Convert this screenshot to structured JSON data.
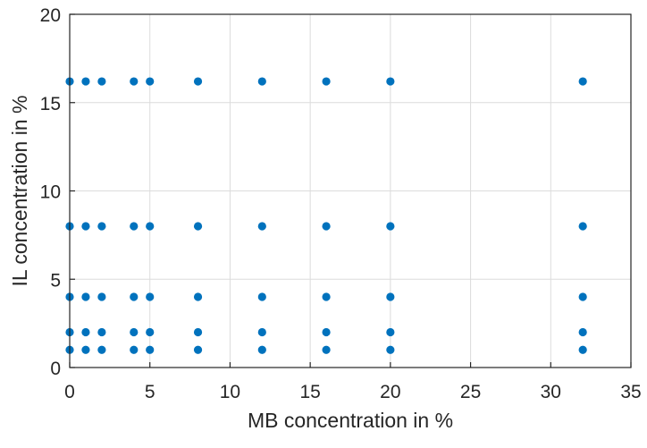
{
  "chart_data": {
    "type": "scatter",
    "title": "",
    "xlabel": "MB concentration in %",
    "ylabel": "IL concentration in %",
    "xlim": [
      0,
      35
    ],
    "ylim": [
      0,
      20
    ],
    "x_ticks": [
      "0",
      "5",
      "10",
      "15",
      "20",
      "25",
      "30",
      "35"
    ],
    "y_ticks": [
      "0",
      "5",
      "10",
      "15",
      "20"
    ],
    "grid": true,
    "legend": "none",
    "marker_color": "#0072BD",
    "series": [
      {
        "x": [
          0,
          1,
          2,
          4,
          5,
          8,
          12,
          16,
          20,
          32,
          0,
          1,
          2,
          4,
          5,
          8,
          12,
          16,
          20,
          32,
          0,
          1,
          2,
          4,
          5,
          8,
          12,
          16,
          20,
          32,
          0,
          1,
          2,
          4,
          5,
          8,
          12,
          16,
          20,
          32,
          0,
          1,
          2,
          4,
          5,
          8,
          12,
          16,
          20,
          32
        ],
        "y": [
          1,
          1,
          1,
          1,
          1,
          1,
          1,
          1,
          1,
          1,
          2,
          2,
          2,
          2,
          2,
          2,
          2,
          2,
          2,
          2,
          4,
          4,
          4,
          4,
          4,
          4,
          4,
          4,
          4,
          4,
          8,
          8,
          8,
          8,
          8,
          8,
          8,
          8,
          8,
          8,
          16.2,
          16.2,
          16.2,
          16.2,
          16.2,
          16.2,
          16.2,
          16.2,
          16.2,
          16.2
        ]
      }
    ]
  }
}
